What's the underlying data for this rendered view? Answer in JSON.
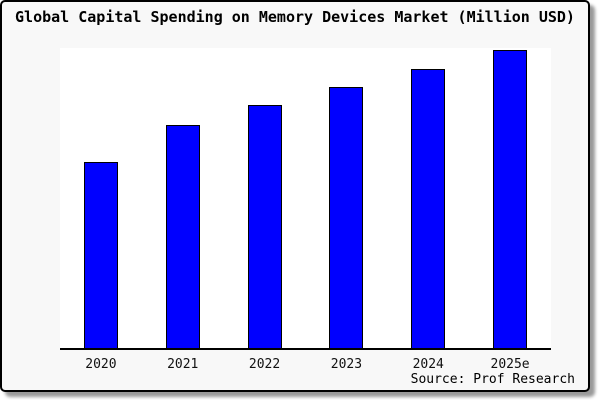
{
  "window": {
    "background": "#f8f8f8",
    "border_color": "#000000",
    "shadow_color": "#9a9a9a"
  },
  "title": "Global Capital Spending on Memory Devices Market (Million USD)",
  "source_note": "Source: Prof Research",
  "chart_data": {
    "type": "bar",
    "categories": [
      "2020",
      "2021",
      "2022",
      "2023",
      "2024",
      "2025e"
    ],
    "values": [
      62,
      74.5,
      81,
      87,
      93,
      99.3
    ],
    "title": "Global Capital Spending on Memory Devices Market (Million USD)",
    "xlabel": "",
    "ylabel": "",
    "ylim": [
      0,
      100
    ],
    "value_scale": "relative height, % of plot scale (no y-axis or value labels shown in chart)",
    "bar_color": "#0000ff",
    "bar_border_color": "#000000",
    "plot_background": "#ffffff",
    "axis_color": "#000000",
    "y_axis_visible": false,
    "gridlines": false,
    "legend": "none",
    "source": "Source: Prof Research"
  }
}
